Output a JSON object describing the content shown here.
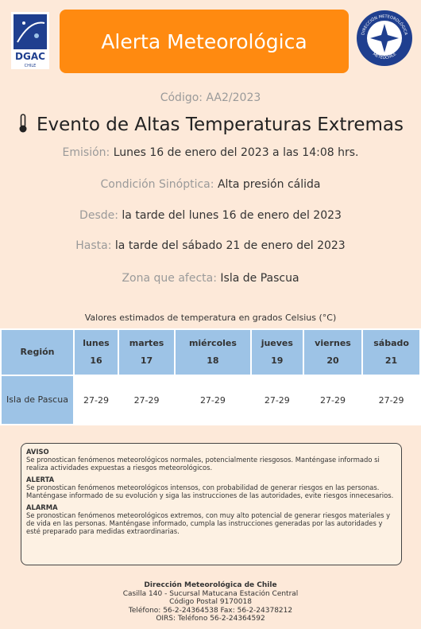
{
  "header": {
    "title": "Alerta Meteorológica",
    "logo_left": {
      "name": "DGAC",
      "country": "CHILE"
    },
    "logo_right": {
      "top": "DIRECCIÓN METEOROLÓGICA",
      "bottom": "METEOCHILE"
    }
  },
  "code": {
    "label": "Código:",
    "value": "AA2/2023"
  },
  "event": "Evento de Altas Temperaturas Extremas",
  "fields": [
    {
      "label": "Emisión:",
      "value": "Lunes 16 de enero del 2023 a las 14:08 hrs."
    },
    {
      "label": "Condición Sinóptica:",
      "value": "Alta presión cálida"
    },
    {
      "label": "Desde:",
      "value": "la tarde del lunes 16 de enero del 2023"
    },
    {
      "label": "Hasta:",
      "value": "la tarde del sábado 21 de enero del 2023"
    },
    {
      "label": "Zona que afecta:",
      "value": "Isla de Pascua"
    }
  ],
  "table": {
    "caption": "Valores estimados de temperatura en grados Celsius (°C)",
    "region_header": "Región",
    "days": [
      {
        "name": "lunes",
        "date": "16"
      },
      {
        "name": "martes",
        "date": "17"
      },
      {
        "name": "miércoles",
        "date": "18"
      },
      {
        "name": "jueves",
        "date": "19"
      },
      {
        "name": "viernes",
        "date": "20"
      },
      {
        "name": "sábado",
        "date": "21"
      }
    ],
    "rows": [
      {
        "region": "Isla de Pascua",
        "values": [
          "27-29",
          "27-29",
          "27-29",
          "27-29",
          "27-29",
          "27-29"
        ]
      }
    ]
  },
  "levels": [
    {
      "title": "AVISO",
      "text": "Se pronostican fenómenos meteorológicos normales, potencialmente riesgosos. Manténgase informado si realiza actividades expuestas a riesgos meteorológicos."
    },
    {
      "title": "ALERTA",
      "text": "Se pronostican fenómenos meteorológicos intensos, con probabilidad de generar riesgos en las personas. Manténgase informado de su evolución y siga las instrucciones de las autoridades, evite riesgos innecesarios."
    },
    {
      "title": "ALARMA",
      "text": "Se pronostican fenómenos meteorológicos extremos, con muy alto potencial de generar riesgos materiales y de vida en las personas. Manténgase informado, cumpla las instrucciones generadas por las autoridades y esté preparado para medidas extraordinarias."
    }
  ],
  "footer": [
    "Dirección Meteorológica de Chile",
    "Casilla 140 - Sucursal Matucana Estación Central",
    "Código Postal 9170018",
    "Teléfono: 56-2-24364538 Fax: 56-2-24378212",
    "OIRS: Teléfono 56-2-24364592"
  ]
}
